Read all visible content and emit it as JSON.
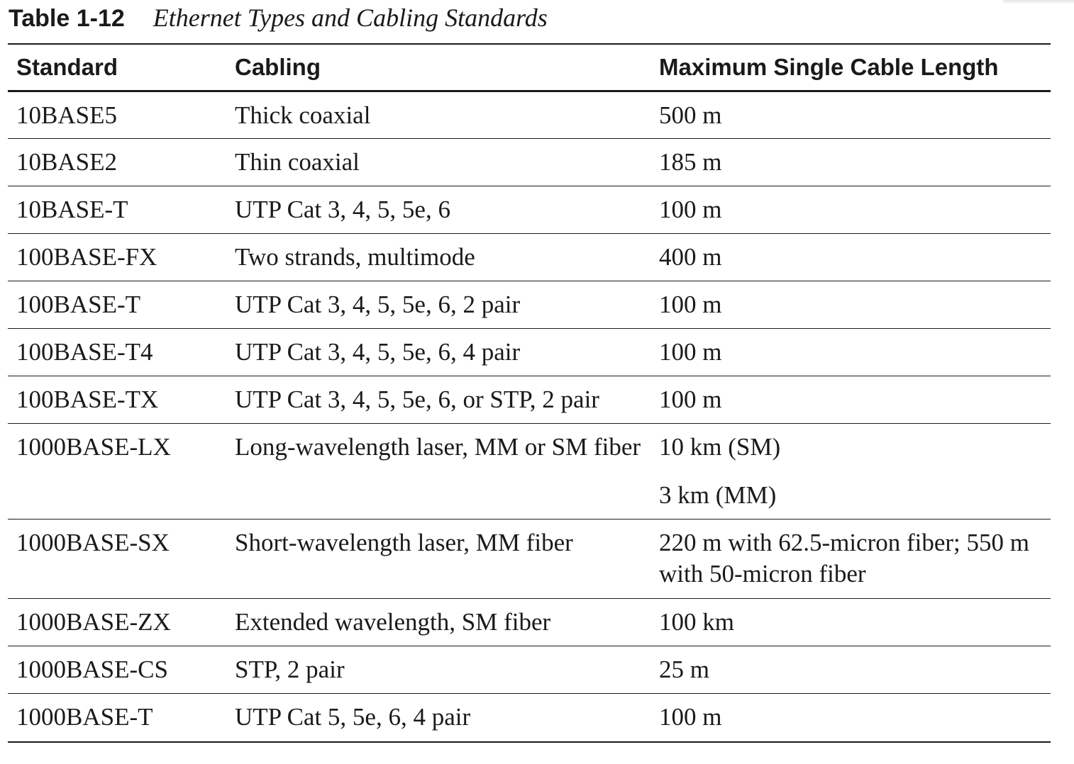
{
  "caption": {
    "number": "Table 1-12",
    "title": "Ethernet Types and Cabling Standards"
  },
  "table": {
    "headers": [
      "Standard",
      "Cabling",
      "Maximum Single Cable Length"
    ],
    "rows": [
      {
        "standard": "10BASE5",
        "cabling": "Thick coaxial",
        "length": [
          "500 m"
        ]
      },
      {
        "standard": "10BASE2",
        "cabling": "Thin coaxial",
        "length": [
          "185 m"
        ]
      },
      {
        "standard": "10BASE-T",
        "cabling": "UTP Cat 3, 4, 5, 5e, 6",
        "length": [
          "100 m"
        ]
      },
      {
        "standard": "100BASE-FX",
        "cabling": "Two strands, multimode",
        "length": [
          "400 m"
        ]
      },
      {
        "standard": "100BASE-T",
        "cabling": "UTP Cat 3, 4, 5, 5e, 6, 2 pair",
        "length": [
          "100 m"
        ]
      },
      {
        "standard": "100BASE-T4",
        "cabling": "UTP Cat 3, 4, 5, 5e, 6, 4 pair",
        "length": [
          "100 m"
        ]
      },
      {
        "standard": "100BASE-TX",
        "cabling": "UTP Cat 3, 4, 5, 5e, 6, or STP, 2 pair",
        "length": [
          "100 m"
        ]
      },
      {
        "standard": "1000BASE-LX",
        "cabling": "Long-wavelength laser, MM or SM fiber",
        "length": [
          "10 km (SM)",
          "3 km (MM)"
        ]
      },
      {
        "standard": "1000BASE-SX",
        "cabling": "Short-wavelength laser, MM fiber",
        "length": [
          "220 m with 62.5-micron fiber; 550 m with 50-micron fiber"
        ]
      },
      {
        "standard": "1000BASE-ZX",
        "cabling": "Extended wavelength, SM fiber",
        "length": [
          "100 km"
        ]
      },
      {
        "standard": "1000BASE-CS",
        "cabling": "STP, 2 pair",
        "length": [
          "25 m"
        ]
      },
      {
        "standard": "1000BASE-T",
        "cabling": "UTP Cat 5, 5e, 6, 4 pair",
        "length": [
          "100 m"
        ]
      }
    ]
  }
}
